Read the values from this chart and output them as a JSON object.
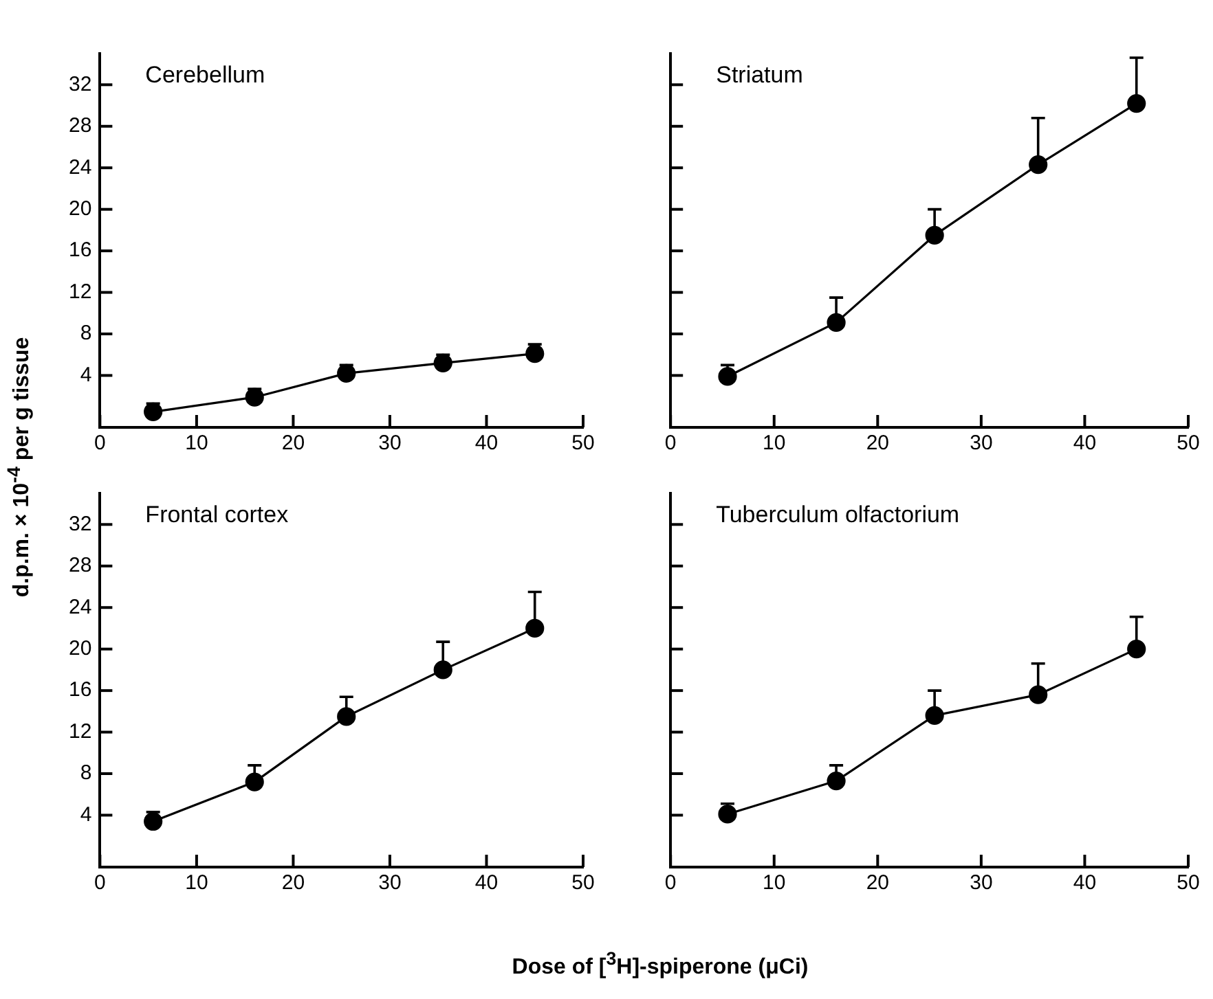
{
  "chart_data": [
    {
      "type": "line",
      "title": "Cerebellum",
      "ylabel": "d.p.m. × 10$^{-4}$ per g tissue",
      "x": [
        5.5,
        16,
        25.5,
        35.5,
        45
      ],
      "values": [
        0.5,
        1.9,
        4.2,
        5.2,
        6.1
      ],
      "errors": [
        [
          0.5,
          1.3
        ],
        [
          1.9,
          2.7
        ],
        [
          4.2,
          5.0
        ],
        [
          5.2,
          6.0
        ],
        [
          6.1,
          7.0
        ]
      ],
      "color": "#000000",
      "marker": "circle",
      "xlim": [
        0,
        50
      ],
      "xticks": [
        0,
        10,
        20,
        30,
        40,
        50
      ],
      "ylim": [
        -1,
        35
      ],
      "yticks": [
        4,
        8,
        12,
        16,
        20,
        24,
        28,
        32
      ]
    },
    {
      "type": "line",
      "title": "Striatum",
      "x": [
        5.5,
        16,
        25.5,
        35.5,
        45
      ],
      "values": [
        3.9,
        9.1,
        17.5,
        24.3,
        30.2
      ],
      "errors": [
        [
          3.9,
          5.0
        ],
        [
          9.1,
          11.5
        ],
        [
          17.5,
          20.0
        ],
        [
          24.3,
          28.8
        ],
        [
          30.2,
          34.6
        ]
      ],
      "color": "#000000",
      "marker": "circle",
      "xlim": [
        0,
        50
      ],
      "xticks": [
        0,
        10,
        20,
        30,
        40,
        50
      ],
      "ylim": [
        -1,
        35
      ],
      "yticks": [
        4,
        8,
        12,
        16,
        20,
        24,
        28,
        32
      ],
      "tick_labels": "x"
    },
    {
      "type": "line",
      "title": "Frontal cortex",
      "xlabel": "Dose of [$^{3}$H]-spiperone (μCi)",
      "x": [
        5.5,
        16,
        25.5,
        35.5,
        45
      ],
      "values": [
        3.4,
        7.2,
        13.5,
        18.0,
        22.0
      ],
      "errors": [
        [
          3.4,
          4.3
        ],
        [
          7.2,
          8.8
        ],
        [
          13.5,
          15.4
        ],
        [
          18.0,
          20.7
        ],
        [
          22.0,
          25.5
        ]
      ],
      "color": "#000000",
      "marker": "circle",
      "xlim": [
        0,
        50
      ],
      "xticks": [
        0,
        10,
        20,
        30,
        40,
        50
      ],
      "ylim": [
        -1,
        35
      ],
      "yticks": [
        4,
        8,
        12,
        16,
        20,
        24,
        28,
        32
      ]
    },
    {
      "type": "line",
      "title": "Tuberculum olfactorium",
      "x": [
        5.5,
        16,
        25.5,
        35.5,
        45
      ],
      "values": [
        4.1,
        7.3,
        13.6,
        15.6,
        20.0
      ],
      "errors": [
        [
          4.1,
          5.1
        ],
        [
          7.3,
          8.8
        ],
        [
          13.6,
          16.0
        ],
        [
          15.6,
          18.6
        ],
        [
          20.0,
          23.1
        ]
      ],
      "color": "#000000",
      "marker": "circle",
      "xlim": [
        0,
        50
      ],
      "xticks": [
        0,
        10,
        20,
        30,
        40,
        50
      ],
      "ylim": [
        -1,
        35
      ],
      "yticks": [
        4,
        8,
        12,
        16,
        20,
        24,
        28,
        32
      ],
      "tick_labels": "x"
    }
  ]
}
